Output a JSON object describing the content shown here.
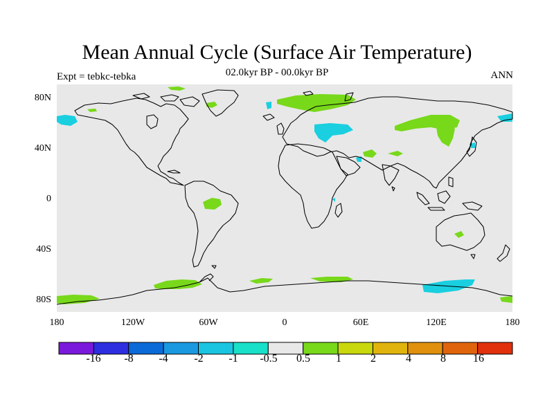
{
  "title": "Mean Annual Cycle (Surface Air Temperature)",
  "subtitle": "02.0kyr BP - 00.0kyr BP",
  "left_label": "Expt = tebkc-tebka",
  "right_label": "ANN",
  "lat_ticks": [
    "80N",
    "40N",
    "0",
    "40S",
    "80S"
  ],
  "lon_ticks": [
    "180",
    "120W",
    "60W",
    "0",
    "60E",
    "120E",
    "180"
  ],
  "colorbar": {
    "colors": [
      "#7a18dc",
      "#2c2ee0",
      "#0b6ad8",
      "#1a98e0",
      "#19c5e0",
      "#19e0c8",
      "#e8e8e8",
      "#78d81a",
      "#c8d80c",
      "#e0b40c",
      "#e0900c",
      "#e0640c",
      "#e0300c"
    ],
    "labels": [
      "-16",
      "-8",
      "-4",
      "-2",
      "-1",
      "-0.5",
      "0.5",
      "1",
      "2",
      "4",
      "8",
      "16"
    ]
  },
  "map_background": "#e8e8e8",
  "anomaly_colors": {
    "warm_1": "#78d81a",
    "cool_1": "#19cfe0"
  }
}
